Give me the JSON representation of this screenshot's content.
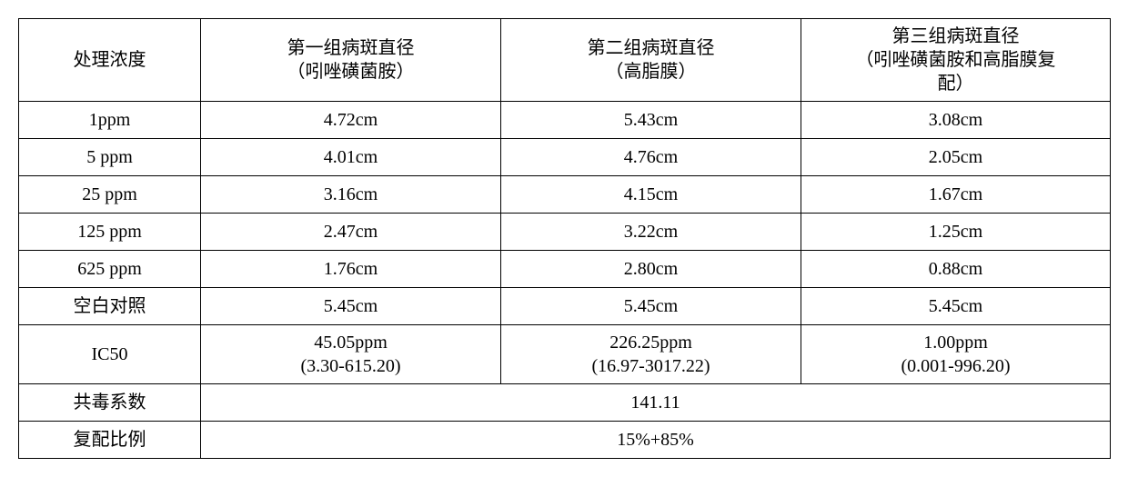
{
  "table": {
    "columns": [
      {
        "header": "处理浓度"
      },
      {
        "header_line1": "第一组病斑直径",
        "header_line2": "（吲唑磺菌胺）"
      },
      {
        "header_line1": "第二组病斑直径",
        "header_line2": "（高脂膜）"
      },
      {
        "header_line1": "第三组病斑直径",
        "header_line2": "（吲唑磺菌胺和高脂膜复",
        "header_line3": "配）"
      }
    ],
    "rows": [
      {
        "c0": "1ppm",
        "c1": "4.72cm",
        "c2": "5.43cm",
        "c3": "3.08cm"
      },
      {
        "c0": "5 ppm",
        "c1": "4.01cm",
        "c2": "4.76cm",
        "c3": "2.05cm"
      },
      {
        "c0": "25 ppm",
        "c1": "3.16cm",
        "c2": "4.15cm",
        "c3": "1.67cm"
      },
      {
        "c0": "125 ppm",
        "c1": "2.47cm",
        "c2": "3.22cm",
        "c3": "1.25cm"
      },
      {
        "c0": "625 ppm",
        "c1": "1.76cm",
        "c2": "2.80cm",
        "c3": "0.88cm"
      },
      {
        "c0": "空白对照",
        "c1": "5.45cm",
        "c2": "5.45cm",
        "c3": "5.45cm"
      }
    ],
    "ic50_row": {
      "label": "IC50",
      "c1_line1": "45.05ppm",
      "c1_line2": "(3.30-615.20)",
      "c2_line1": "226.25ppm",
      "c2_line2": "(16.97-3017.22)",
      "c3_line1": "1.00ppm",
      "c3_line2": "(0.001-996.20)"
    },
    "cotox_row": {
      "label": "共毒系数",
      "value": "141.11"
    },
    "ratio_row": {
      "label": "复配比例",
      "value": "15%+85%"
    }
  },
  "style": {
    "border_color": "#000000",
    "background": "#ffffff",
    "font_size_pt": 20,
    "font_family": "SimSun"
  }
}
